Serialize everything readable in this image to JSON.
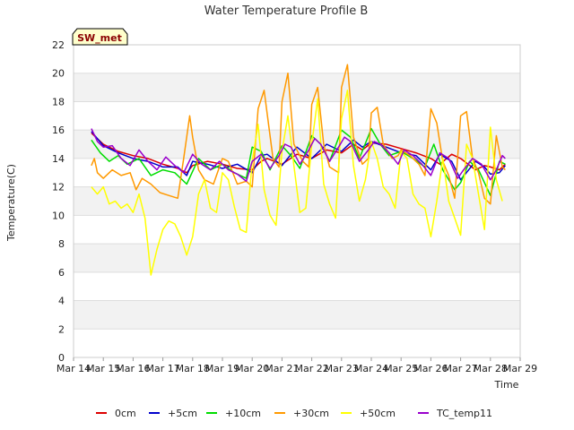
{
  "chart_data": {
    "type": "line",
    "title": "Water Temperature Profile B",
    "xlabel": "Time",
    "ylabel": "Temperature(C)",
    "site_label": "SW_met",
    "x_ticks": [
      "Mar 14",
      "Mar 15",
      "Mar 16",
      "Mar 17",
      "Mar 18",
      "Mar 19",
      "Mar 20",
      "Mar 21",
      "Mar 22",
      "Mar 23",
      "Mar 24",
      "Mar 25",
      "Mar 26",
      "Mar 27",
      "Mar 28",
      "Mar 29"
    ],
    "xlim": [
      14,
      29
    ],
    "y_ticks": [
      0,
      2,
      4,
      6,
      8,
      10,
      12,
      14,
      16,
      18,
      20,
      22
    ],
    "ylim": [
      0,
      22
    ],
    "grid": true,
    "legend_position": "bottom",
    "series": [
      {
        "name": "0cm",
        "color": "#dd0000",
        "x": [
          14.6,
          15.0,
          15.5,
          16.0,
          16.5,
          17.0,
          17.5,
          17.8,
          18.0,
          18.5,
          19.0,
          19.5,
          20.0,
          20.3,
          20.5,
          21.0,
          21.5,
          22.0,
          22.5,
          23.0,
          23.4,
          23.7,
          24.0,
          24.5,
          25.0,
          25.5,
          26.0,
          26.3,
          26.7,
          27.0,
          27.5,
          27.8,
          28.0,
          28.3,
          28.5
        ],
        "y": [
          15.8,
          15.0,
          14.5,
          14.2,
          14.0,
          13.6,
          13.3,
          13.0,
          13.5,
          13.8,
          13.6,
          13.3,
          13.2,
          13.8,
          14.0,
          13.6,
          14.3,
          14.0,
          14.6,
          14.4,
          15.0,
          14.6,
          15.1,
          15.0,
          14.7,
          14.4,
          14.0,
          13.6,
          14.3,
          14.0,
          13.2,
          13.5,
          13.4,
          13.2,
          13.6
        ]
      },
      {
        "name": "+5cm",
        "color": "#0000cc",
        "x": [
          14.6,
          15.0,
          15.5,
          16.0,
          16.5,
          17.0,
          17.5,
          17.8,
          18.0,
          18.5,
          19.0,
          19.5,
          20.0,
          20.3,
          20.5,
          21.0,
          21.5,
          22.0,
          22.5,
          23.0,
          23.4,
          23.7,
          24.0,
          24.5,
          25.0,
          25.5,
          26.0,
          26.3,
          26.7,
          27.0,
          27.5,
          27.8,
          28.0,
          28.3,
          28.5
        ],
        "y": [
          15.9,
          14.9,
          14.4,
          14.0,
          13.8,
          13.4,
          13.4,
          12.8,
          13.8,
          13.6,
          13.3,
          13.6,
          13.0,
          14.2,
          14.3,
          13.5,
          14.8,
          14.0,
          15.0,
          14.5,
          15.3,
          14.8,
          15.2,
          14.8,
          14.4,
          14.2,
          13.2,
          14.3,
          13.8,
          12.5,
          13.8,
          13.4,
          12.9,
          13.0,
          13.5
        ]
      },
      {
        "name": "+10cm",
        "color": "#00dd00",
        "x": [
          14.6,
          14.9,
          15.2,
          15.5,
          15.8,
          16.2,
          16.6,
          17.0,
          17.4,
          17.8,
          18.2,
          18.6,
          19.0,
          19.4,
          19.8,
          20.0,
          20.3,
          20.6,
          21.0,
          21.3,
          21.6,
          22.0,
          22.3,
          22.6,
          23.0,
          23.3,
          23.6,
          24.0,
          24.3,
          24.6,
          25.0,
          25.4,
          25.8,
          26.1,
          26.4,
          26.8,
          27.0,
          27.3,
          27.6,
          28.0,
          28.3,
          28.5
        ],
        "y": [
          15.3,
          14.4,
          13.8,
          14.2,
          13.6,
          14.0,
          12.8,
          13.2,
          13.0,
          12.2,
          14.0,
          13.2,
          13.6,
          13.0,
          12.6,
          14.8,
          14.5,
          13.2,
          14.9,
          14.2,
          13.3,
          15.6,
          15.0,
          13.8,
          16.0,
          15.5,
          14.0,
          16.1,
          15.0,
          14.2,
          14.5,
          14.0,
          13.4,
          15.0,
          13.2,
          11.8,
          12.3,
          13.8,
          13.2,
          11.4,
          13.8,
          13.6
        ]
      },
      {
        "name": "+30cm",
        "color": "#ff9900",
        "x": [
          14.6,
          14.7,
          14.8,
          15.0,
          15.3,
          15.6,
          15.9,
          16.1,
          16.3,
          16.6,
          16.9,
          17.2,
          17.5,
          17.7,
          17.9,
          18.0,
          18.2,
          18.4,
          18.7,
          19.0,
          19.2,
          19.5,
          19.8,
          20.0,
          20.2,
          20.4,
          20.7,
          20.9,
          21.0,
          21.2,
          21.4,
          21.7,
          21.9,
          22.0,
          22.2,
          22.4,
          22.6,
          22.9,
          23.0,
          23.2,
          23.4,
          23.7,
          23.9,
          24.0,
          24.2,
          24.4,
          24.7,
          24.9,
          25.0,
          25.3,
          25.6,
          25.8,
          26.0,
          26.2,
          26.4,
          26.6,
          26.8,
          27.0,
          27.2,
          27.4,
          27.6,
          27.8,
          28.0,
          28.2,
          28.4,
          28.5
        ],
        "y": [
          13.5,
          14.0,
          13.0,
          12.6,
          13.2,
          12.8,
          13.0,
          11.8,
          12.6,
          12.2,
          11.6,
          11.4,
          11.2,
          14.0,
          17.0,
          15.5,
          13.2,
          12.5,
          12.2,
          14.0,
          13.8,
          12.2,
          12.4,
          12.0,
          17.5,
          18.8,
          14.0,
          13.4,
          18.0,
          20.0,
          15.0,
          13.8,
          13.4,
          17.8,
          19.0,
          15.0,
          13.4,
          13.0,
          19.0,
          20.6,
          15.5,
          13.6,
          14.0,
          17.2,
          17.6,
          15.0,
          14.0,
          14.2,
          14.6,
          14.2,
          13.6,
          12.8,
          17.5,
          16.5,
          13.8,
          12.8,
          11.2,
          17.0,
          17.3,
          14.0,
          13.0,
          11.2,
          10.8,
          15.6,
          13.4,
          13.2
        ]
      },
      {
        "name": "+50cm",
        "color": "#ffff00",
        "x": [
          14.6,
          14.8,
          15.0,
          15.2,
          15.4,
          15.6,
          15.8,
          16.0,
          16.2,
          16.4,
          16.5,
          16.6,
          16.8,
          17.0,
          17.2,
          17.4,
          17.6,
          17.8,
          18.0,
          18.2,
          18.4,
          18.6,
          18.8,
          19.0,
          19.2,
          19.4,
          19.6,
          19.8,
          20.0,
          20.2,
          20.4,
          20.6,
          20.8,
          21.0,
          21.2,
          21.4,
          21.6,
          21.8,
          22.0,
          22.2,
          22.4,
          22.6,
          22.8,
          23.0,
          23.2,
          23.4,
          23.6,
          23.8,
          24.0,
          24.2,
          24.4,
          24.6,
          24.8,
          25.0,
          25.2,
          25.4,
          25.6,
          25.8,
          26.0,
          26.2,
          26.4,
          26.6,
          26.8,
          27.0,
          27.2,
          27.4,
          27.6,
          27.8,
          28.0,
          28.2,
          28.4
        ],
        "y": [
          12.0,
          11.5,
          12.0,
          10.8,
          11.0,
          10.5,
          10.8,
          10.2,
          11.5,
          9.8,
          7.8,
          5.8,
          7.6,
          9.0,
          9.6,
          9.4,
          8.5,
          7.2,
          8.5,
          11.5,
          12.5,
          10.5,
          10.2,
          13.0,
          12.5,
          10.6,
          9.0,
          8.8,
          13.8,
          16.4,
          11.8,
          10.0,
          9.3,
          14.5,
          17.0,
          13.5,
          10.2,
          10.5,
          15.0,
          18.2,
          12.2,
          10.8,
          9.8,
          16.8,
          18.8,
          13.5,
          11.0,
          12.5,
          15.2,
          14.0,
          12.0,
          11.5,
          10.5,
          14.5,
          14.0,
          11.5,
          10.8,
          10.5,
          8.5,
          11.0,
          14.0,
          11.0,
          9.8,
          8.6,
          15.0,
          14.0,
          11.5,
          9.0,
          16.2,
          12.5,
          11.0
        ]
      },
      {
        "name": "TC_temp11",
        "color": "#9900cc",
        "x": [
          14.6,
          14.8,
          15.0,
          15.3,
          15.6,
          15.9,
          16.2,
          16.5,
          16.8,
          17.1,
          17.4,
          17.7,
          18.0,
          18.3,
          18.6,
          18.9,
          19.2,
          19.5,
          19.8,
          20.0,
          20.3,
          20.6,
          20.9,
          21.1,
          21.3,
          21.6,
          21.9,
          22.1,
          22.3,
          22.6,
          22.9,
          23.1,
          23.3,
          23.6,
          23.9,
          24.1,
          24.3,
          24.6,
          24.9,
          25.1,
          25.4,
          25.7,
          26.0,
          26.3,
          26.6,
          26.9,
          27.1,
          27.4,
          27.7,
          28.0,
          28.2,
          28.4,
          28.5
        ],
        "y": [
          16.1,
          15.2,
          14.8,
          14.9,
          14.0,
          13.5,
          14.6,
          13.8,
          13.2,
          14.1,
          13.5,
          13.0,
          14.3,
          13.6,
          13.2,
          13.8,
          13.2,
          12.9,
          12.4,
          13.8,
          14.3,
          13.3,
          14.2,
          15.0,
          14.8,
          13.6,
          14.6,
          15.4,
          15.0,
          13.8,
          14.8,
          15.5,
          15.2,
          13.8,
          14.6,
          15.2,
          15.0,
          14.4,
          13.6,
          14.6,
          14.2,
          13.6,
          12.8,
          14.4,
          14.0,
          12.6,
          13.2,
          14.0,
          13.6,
          12.5,
          13.2,
          14.2,
          14.0
        ]
      }
    ]
  }
}
